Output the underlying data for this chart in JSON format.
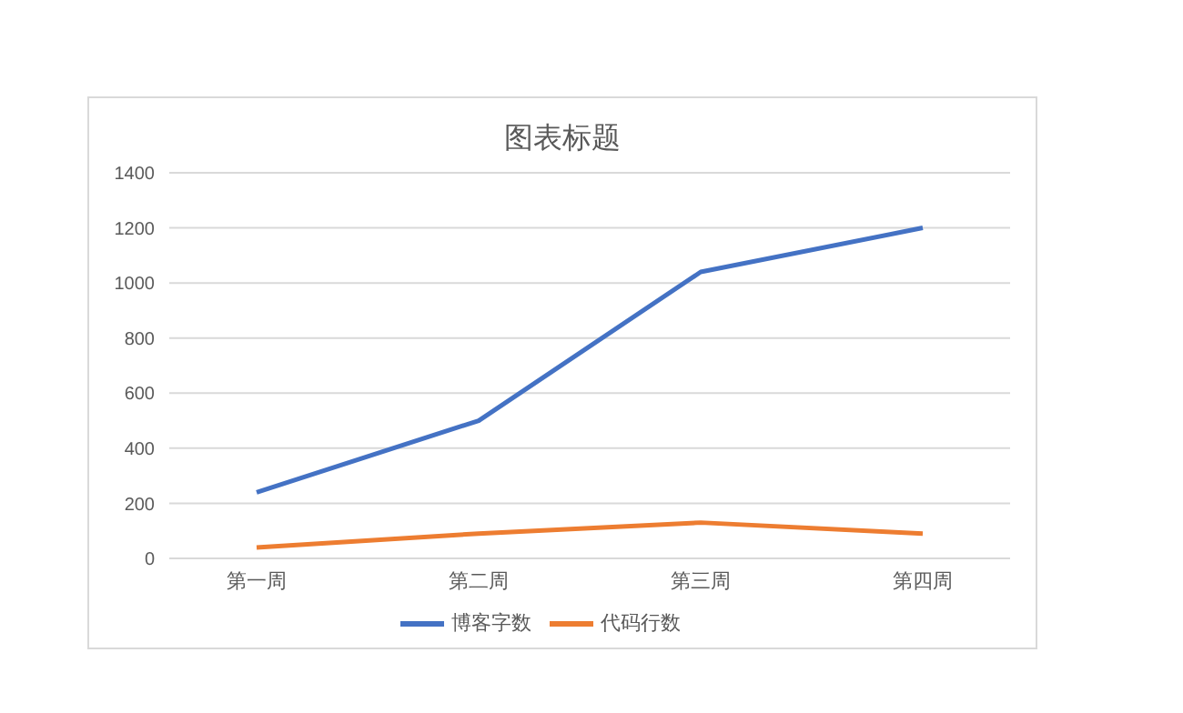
{
  "chart_data": {
    "type": "line",
    "title": "图表标题",
    "categories": [
      "第一周",
      "第二周",
      "第三周",
      "第四周"
    ],
    "series": [
      {
        "name": "博客字数",
        "color": "#4472c4",
        "values": [
          240,
          500,
          1040,
          1200
        ]
      },
      {
        "name": "代码行数",
        "color": "#ed7d31",
        "values": [
          40,
          90,
          130,
          90
        ]
      }
    ],
    "ylim": [
      0,
      1400
    ],
    "yticks": [
      0,
      200,
      400,
      600,
      800,
      1000,
      1200,
      1400
    ],
    "grid": "y",
    "legend": "bottom",
    "marker": "none",
    "line_style": "solid"
  }
}
